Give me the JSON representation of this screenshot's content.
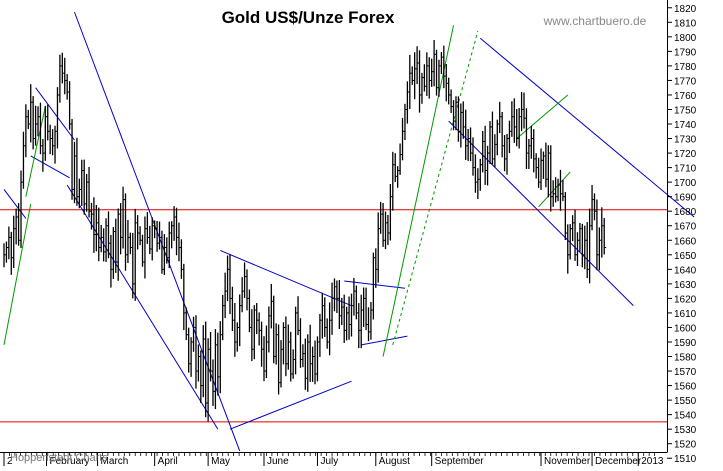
{
  "chart_data": {
    "type": "bar",
    "subtype": "ohlc",
    "title": "Gold US$/Unze Forex",
    "watermark": "www.chartbuero.de",
    "credit": "Hoppenstedt Charts",
    "grid": false,
    "axis_position": "right",
    "ylim": [
      1505,
      1825
    ],
    "yticks": [
      1510,
      1520,
      1530,
      1540,
      1550,
      1560,
      1570,
      1580,
      1590,
      1600,
      1610,
      1620,
      1630,
      1640,
      1650,
      1660,
      1670,
      1680,
      1690,
      1700,
      1710,
      1720,
      1730,
      1740,
      1750,
      1760,
      1770,
      1780,
      1790,
      1800,
      1810,
      1820
    ],
    "xlim": [
      0,
      270
    ],
    "xticks": [
      {
        "label": "2",
        "x": 0
      },
      {
        "label": "February",
        "x": 17.5
      },
      {
        "label": "March",
        "x": 38.5
      },
      {
        "label": "April",
        "x": 62
      },
      {
        "label": "May",
        "x": 84
      },
      {
        "label": "June",
        "x": 107
      },
      {
        "label": "July",
        "x": 129
      },
      {
        "label": "August",
        "x": 153
      },
      {
        "label": "September",
        "x": 176
      },
      {
        "label": "November",
        "x": 221
      },
      {
        "label": "December",
        "x": 242
      },
      {
        "label": "2013",
        "x": 261
      }
    ],
    "horizontal_lines": [
      {
        "y": 1681,
        "color": "#dd0000"
      },
      {
        "y": 1535,
        "color": "#dd0000"
      }
    ],
    "trend_lines": [
      {
        "color": "#0000cc",
        "points": [
          [
            0,
            1695
          ],
          [
            9,
            1675
          ]
        ]
      },
      {
        "color": "#009900",
        "points": [
          [
            0,
            1588
          ],
          [
            11,
            1685
          ]
        ]
      },
      {
        "color": "#0000cc",
        "points": [
          [
            13,
            1765
          ],
          [
            29,
            1729
          ]
        ]
      },
      {
        "color": "#0000cc",
        "points": [
          [
            11,
            1718
          ],
          [
            27,
            1703
          ]
        ]
      },
      {
        "color": "#009900",
        "points": [
          [
            9,
            1690
          ],
          [
            17,
            1752
          ]
        ]
      },
      {
        "color": "#0000cc",
        "points": [
          [
            29,
            1817
          ],
          [
            97,
            1515
          ]
        ]
      },
      {
        "color": "#0000cc",
        "points": [
          [
            26,
            1698
          ],
          [
            88,
            1530
          ]
        ]
      },
      {
        "color": "#0000cc",
        "points": [
          [
            89,
            1653
          ],
          [
            143,
            1615
          ]
        ]
      },
      {
        "color": "#0000cc",
        "points": [
          [
            93,
            1530
          ],
          [
            143,
            1563
          ]
        ]
      },
      {
        "color": "#0000cc",
        "points": [
          [
            140,
            1632
          ],
          [
            165,
            1627
          ]
        ]
      },
      {
        "color": "#0000cc",
        "points": [
          [
            147,
            1588
          ],
          [
            166,
            1594
          ]
        ]
      },
      {
        "color": "#009900",
        "points": [
          [
            156,
            1580
          ],
          [
            185,
            1808
          ]
        ]
      },
      {
        "color": "#009900",
        "dashed": true,
        "points": [
          [
            160,
            1588
          ],
          [
            195,
            1804
          ]
        ]
      },
      {
        "color": "#0000cc",
        "points": [
          [
            196,
            1799
          ],
          [
            284,
            1676
          ]
        ]
      },
      {
        "color": "#0000cc",
        "points": [
          [
            183,
            1742
          ],
          [
            259,
            1615
          ]
        ]
      },
      {
        "color": "#009900",
        "points": [
          [
            211,
            1730
          ],
          [
            232,
            1760
          ]
        ]
      },
      {
        "color": "#009900",
        "points": [
          [
            220,
            1683
          ],
          [
            233,
            1707
          ]
        ]
      }
    ],
    "series": [
      {
        "color": "#000000",
        "close": [
          1650,
          1655,
          1662,
          1648,
          1668,
          1676,
          1660,
          1700,
          1725,
          1745,
          1740,
          1755,
          1730,
          1740,
          1745,
          1725,
          1720,
          1745,
          1735,
          1730,
          1725,
          1735,
          1760,
          1780,
          1775,
          1770,
          1762,
          1740,
          1695,
          1718,
          1690,
          1695,
          1708,
          1685,
          1700,
          1680,
          1678,
          1664,
          1672,
          1655,
          1662,
          1652,
          1670,
          1658,
          1640,
          1666,
          1645,
          1678,
          1662,
          1688,
          1650,
          1662,
          1655,
          1630,
          1672,
          1665,
          1660,
          1645,
          1668,
          1662,
          1654,
          1670,
          1668,
          1658,
          1662,
          1640,
          1655,
          1648,
          1665,
          1670,
          1676,
          1662,
          1655,
          1640,
          1610,
          1595,
          1575,
          1590,
          1600,
          1570,
          1580,
          1560,
          1592,
          1548,
          1585,
          1570,
          1556,
          1588,
          1566,
          1595,
          1615,
          1625,
          1640,
          1620,
          1605,
          1590,
          1600,
          1615,
          1625,
          1635,
          1620,
          1600,
          1585,
          1612,
          1605,
          1598,
          1585,
          1570,
          1590,
          1608,
          1618,
          1580,
          1595,
          1562,
          1585,
          1600,
          1575,
          1590,
          1568,
          1578,
          1610,
          1598,
          1578,
          1582,
          1565,
          1590,
          1575,
          1580,
          1568,
          1590,
          1605,
          1615,
          1600,
          1590,
          1605,
          1620,
          1628,
          1620,
          1608,
          1614,
          1598,
          1610,
          1602,
          1615,
          1625,
          1610,
          1598,
          1612,
          1620,
          1602,
          1597,
          1612,
          1648,
          1640,
          1668,
          1678,
          1660,
          1672,
          1665,
          1690,
          1712,
          1704,
          1708,
          1719,
          1735,
          1750,
          1762,
          1775,
          1770,
          1778,
          1782,
          1760,
          1772,
          1766,
          1780,
          1770,
          1776,
          1788,
          1765,
          1780,
          1786,
          1773,
          1768,
          1760,
          1752,
          1742,
          1755,
          1735,
          1748,
          1738,
          1725,
          1730,
          1720,
          1710,
          1700,
          1702,
          1712,
          1728,
          1708,
          1720,
          1738,
          1716,
          1726,
          1740,
          1745,
          1725,
          1716,
          1730,
          1735,
          1745,
          1738,
          1730,
          1745,
          1750,
          1744,
          1720,
          1725,
          1730,
          1716,
          1710,
          1700,
          1715,
          1718,
          1702,
          1720,
          1690,
          1692,
          1690,
          1698,
          1692,
          1690,
          1665,
          1650,
          1668,
          1672,
          1650,
          1660,
          1668,
          1650,
          1660,
          1640,
          1670,
          1688,
          1680,
          1650,
          1660,
          1670,
          1655
        ]
      }
    ]
  }
}
